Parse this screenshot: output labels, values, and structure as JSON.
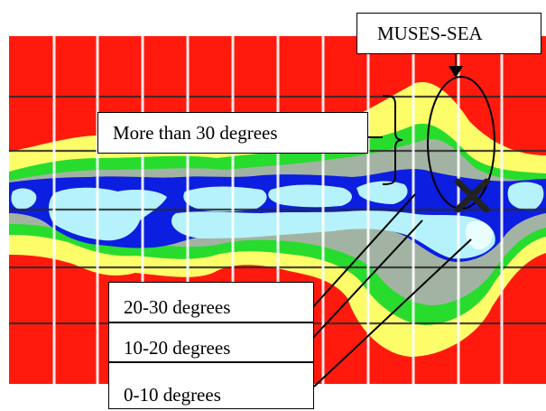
{
  "labels": {
    "muses_sea": "MUSES-SEA",
    "more_than_30": "More than 30 degrees",
    "range_20_30": "20-30 degrees",
    "range_10_20": "10-20 degrees",
    "range_0_10": "0-10 degrees"
  },
  "colors": {
    "more_than_30": "#ff1a0d",
    "band_yellow": "#fdfd6a",
    "band_green": "#28dc2e",
    "band_gray": "#a3b3a3",
    "band_dark_blue": "#0c1ee0",
    "band_light_blue": "#b5f2fb",
    "band_white": "#eafdff",
    "grid_vertical": "#ffffff",
    "grid_horizontal": "#2a2a2a"
  }
}
